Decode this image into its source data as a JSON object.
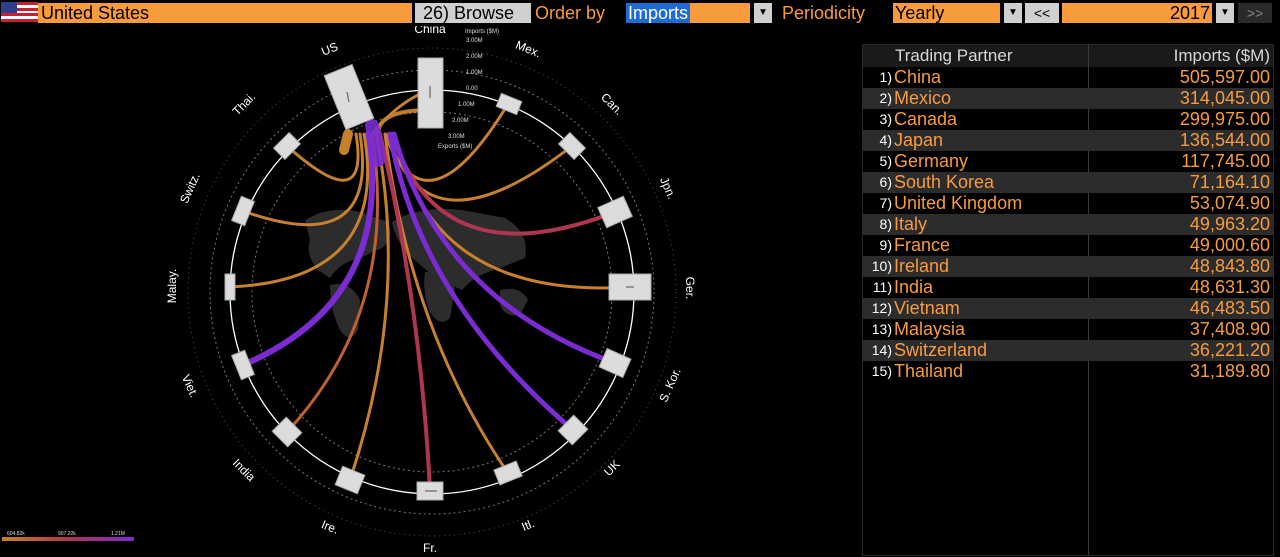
{
  "header": {
    "country": "United States",
    "browse_label": "26) Browse",
    "order_by_label": "Order by",
    "order_by_value": "Imports",
    "periodicity_label": "Periodicity",
    "periodicity_value": "Yearly",
    "prev_label": "<<",
    "year": "2017",
    "next_label": ">>"
  },
  "table": {
    "col_partner": "Trading Partner",
    "col_imports": "Imports ($M)",
    "rows": [
      {
        "rank": "1)",
        "name": "China",
        "value": "505,597.00"
      },
      {
        "rank": "2)",
        "name": "Mexico",
        "value": "314,045.00"
      },
      {
        "rank": "3)",
        "name": "Canada",
        "value": "299,975.00"
      },
      {
        "rank": "4)",
        "name": "Japan",
        "value": "136,544.00"
      },
      {
        "rank": "5)",
        "name": "Germany",
        "value": "117,745.00"
      },
      {
        "rank": "6)",
        "name": "South Korea",
        "value": "71,164.10"
      },
      {
        "rank": "7)",
        "name": "United Kingdom",
        "value": "53,074.90"
      },
      {
        "rank": "8)",
        "name": "Italy",
        "value": "49,963.20"
      },
      {
        "rank": "9)",
        "name": "France",
        "value": "49,000.60"
      },
      {
        "rank": "10)",
        "name": "Ireland",
        "value": "48,843.80"
      },
      {
        "rank": "11)",
        "name": "India",
        "value": "48,631.30"
      },
      {
        "rank": "12)",
        "name": "Vietnam",
        "value": "46,483.50"
      },
      {
        "rank": "13)",
        "name": "Malaysia",
        "value": "37,408.90"
      },
      {
        "rank": "14)",
        "name": "Switzerland",
        "value": "36,221.20"
      },
      {
        "rank": "15)",
        "name": "Thailand",
        "value": "31,189.80"
      }
    ]
  },
  "chart": {
    "labels": [
      "China",
      "Mex.",
      "Can.",
      "Jpn.",
      "Ger.",
      "S. Kor.",
      "UK",
      "Itl.",
      "Fr.",
      "Ire.",
      "India",
      "Viet.",
      "Malay.",
      "Switz.",
      "Thai.",
      "US"
    ],
    "scale_top": "Imports ($M)",
    "scale_ticks": [
      "3.00M",
      "2.00M",
      "1.00M",
      "0.00",
      "1.00M",
      "2.00M",
      "3.00M"
    ],
    "scale_bottom": "Exports ($M)",
    "legend_ticks": [
      "604.82k",
      "907.22k",
      "1.21M"
    ],
    "colors": {
      "low": "#c7802e",
      "mid": "#b0364f",
      "high": "#7a2bd1"
    }
  },
  "chart_data": {
    "type": "chord",
    "center": "US",
    "partners": [
      "China",
      "Mex.",
      "Can.",
      "Jpn.",
      "Ger.",
      "S. Kor.",
      "UK",
      "Itl.",
      "Fr.",
      "Ire.",
      "India",
      "Viet.",
      "Malay.",
      "Switz.",
      "Thai."
    ],
    "imports_musd": [
      505597.0,
      314045.0,
      299975.0,
      136544.0,
      117745.0,
      71164.1,
      53074.9,
      49963.2,
      49000.6,
      48843.8,
      48631.3,
      46483.5,
      37408.9,
      36221.2,
      31189.8
    ],
    "color_scale": {
      "min": "604.82k",
      "mid": "907.22k",
      "max": "1.21M"
    }
  }
}
